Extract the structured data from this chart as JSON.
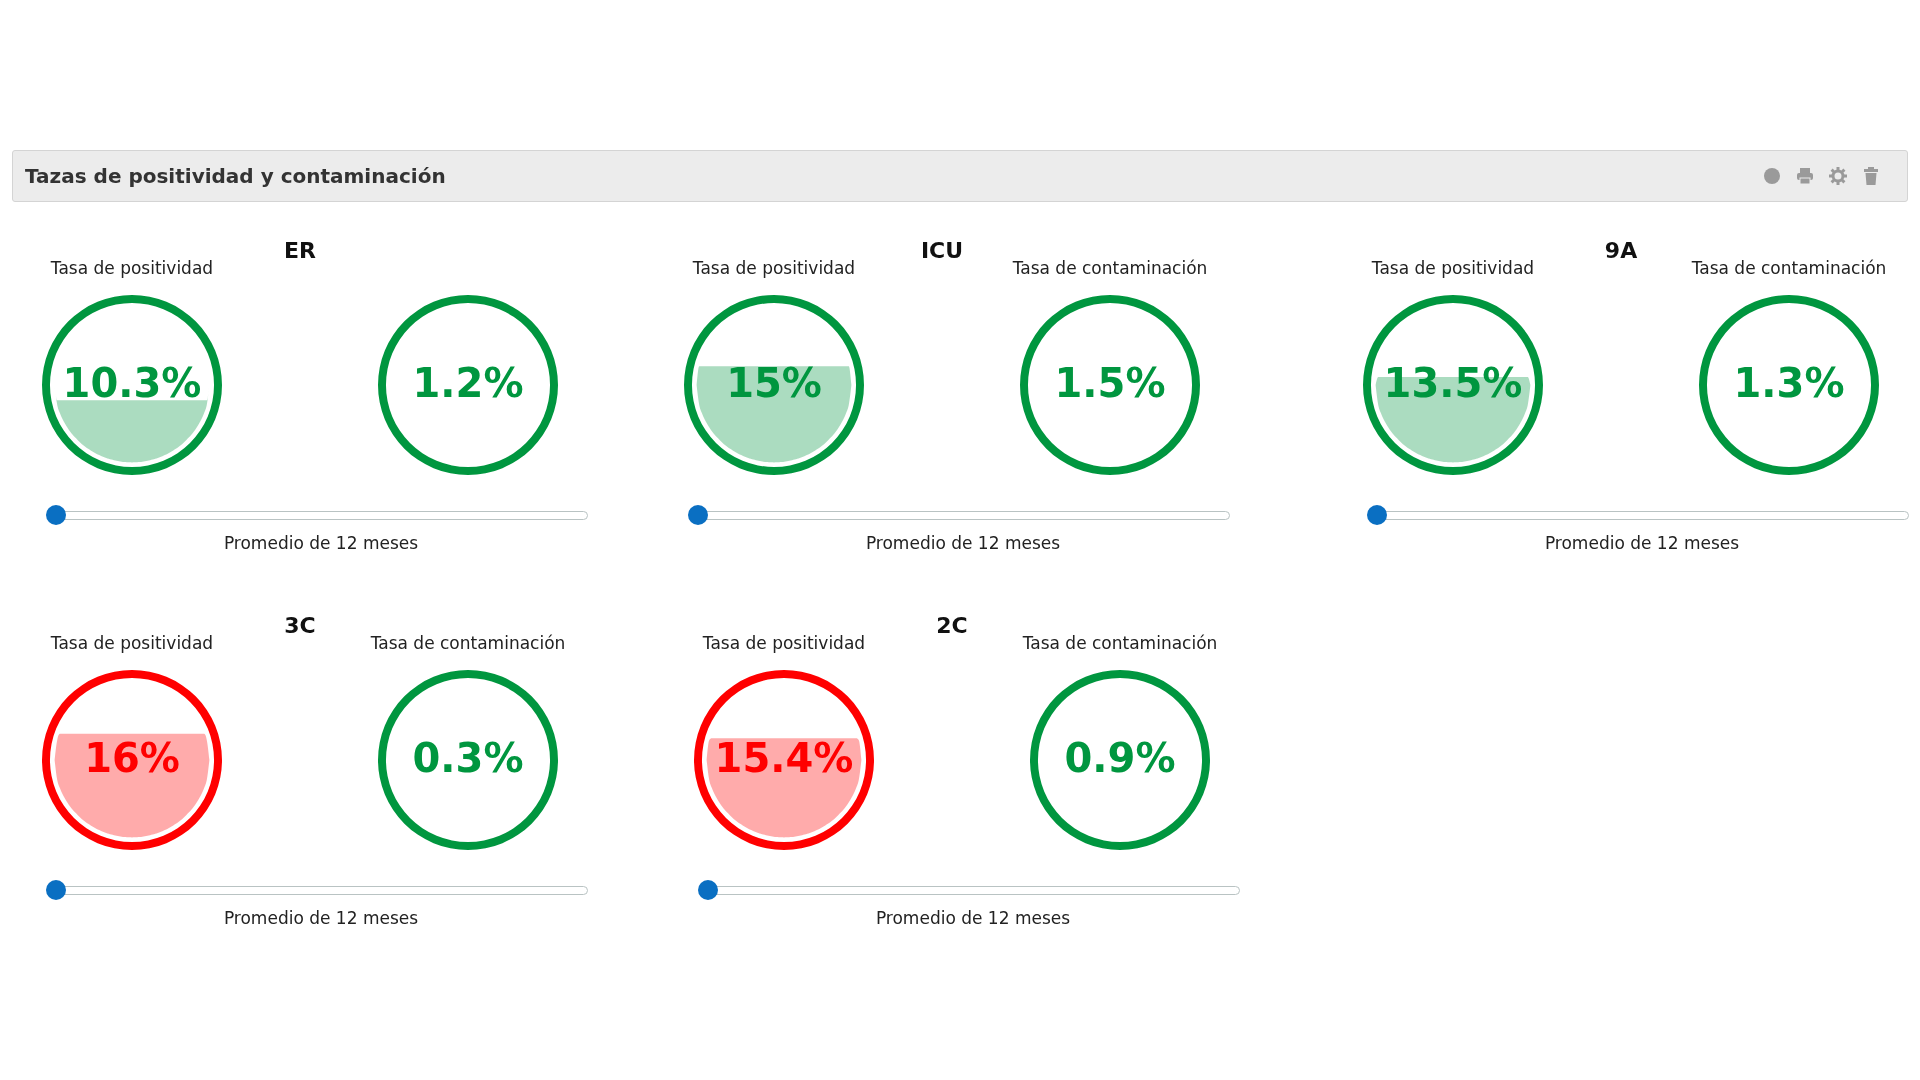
{
  "chart_data": [
    {
      "type": "other",
      "title": "Tazas de positividad y contaminación"
    },
    {
      "type": "other",
      "title": "ER",
      "categories": [
        "Tasa de positividad",
        null
      ],
      "values": [
        10.3,
        1.2
      ],
      "value_labels": [
        "10.3%",
        "1.2%"
      ],
      "colors": [
        "#00963f",
        "#00963f"
      ],
      "annotations": [
        "Promedio de 12 meses"
      ]
    },
    {
      "type": "other",
      "title": "ICU",
      "categories": [
        "Tasa de positividad",
        "Tasa de contaminación"
      ],
      "values": [
        15,
        1.5
      ],
      "value_labels": [
        "15%",
        "1.5%"
      ],
      "colors": [
        "#00963f",
        "#00963f"
      ],
      "annotations": [
        "Promedio de 12 meses"
      ]
    },
    {
      "type": "other",
      "title": "9A",
      "categories": [
        "Tasa de positividad",
        "Tasa de contaminación"
      ],
      "values": [
        13.5,
        1.3
      ],
      "value_labels": [
        "13.5%",
        "1.3%"
      ],
      "colors": [
        "#00963f",
        "#00963f"
      ],
      "annotations": [
        "Promedio de 12 meses"
      ]
    },
    {
      "type": "other",
      "title": "3C",
      "categories": [
        "Tasa de positividad",
        "Tasa de contaminación"
      ],
      "values": [
        16,
        0.3
      ],
      "value_labels": [
        "16%",
        "0.3%"
      ],
      "colors": [
        "#ff0000",
        "#00963f"
      ],
      "annotations": [
        "Promedio de 12 meses"
      ]
    },
    {
      "type": "other",
      "title": "2C",
      "categories": [
        "Tasa de positividad",
        "Tasa de contaminación"
      ],
      "values": [
        15.4,
        0.9
      ],
      "value_labels": [
        "15.4%",
        "0.9%"
      ],
      "colors": [
        "#ff0000",
        "#00963f"
      ],
      "annotations": [
        "Promedio de 12 meses"
      ]
    }
  ]
}
